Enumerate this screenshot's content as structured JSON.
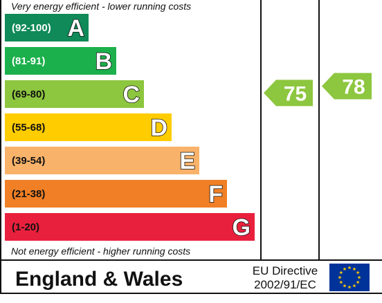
{
  "chart_data": {
    "type": "bar",
    "top_caption": "Very energy efficient - lower running costs",
    "bottom_caption": "Not energy efficient - higher running costs",
    "bands": [
      {
        "range": "(92-100)",
        "letter": "A",
        "min": 92,
        "max": 100,
        "color": "#0f8a58",
        "label_color": "#ffffff"
      },
      {
        "range": "(81-91)",
        "letter": "B",
        "min": 81,
        "max": 91,
        "color": "#1bb04b",
        "label_color": "#ffffff"
      },
      {
        "range": "(69-80)",
        "letter": "C",
        "min": 69,
        "max": 80,
        "color": "#8dc63f",
        "label_color": "#111111"
      },
      {
        "range": "(55-68)",
        "letter": "D",
        "min": 55,
        "max": 68,
        "color": "#ffcc00",
        "label_color": "#111111"
      },
      {
        "range": "(39-54)",
        "letter": "E",
        "min": 39,
        "max": 54,
        "color": "#f8b26a",
        "label_color": "#111111"
      },
      {
        "range": "(21-38)",
        "letter": "F",
        "min": 21,
        "max": 38,
        "color": "#f07f25",
        "label_color": "#111111"
      },
      {
        "range": "(1-20)",
        "letter": "G",
        "min": 1,
        "max": 20,
        "color": "#e9203d",
        "label_color": "#111111"
      }
    ],
    "ratings": [
      {
        "value": 75,
        "color": "#8dc63f"
      },
      {
        "value": 78,
        "color": "#8dc63f"
      }
    ]
  },
  "footer": {
    "country": "England & Wales",
    "directive_line1": "EU Directive",
    "directive_line2": "2002/91/EC",
    "flag_color": "#003399",
    "star_color": "#ffcc00"
  }
}
